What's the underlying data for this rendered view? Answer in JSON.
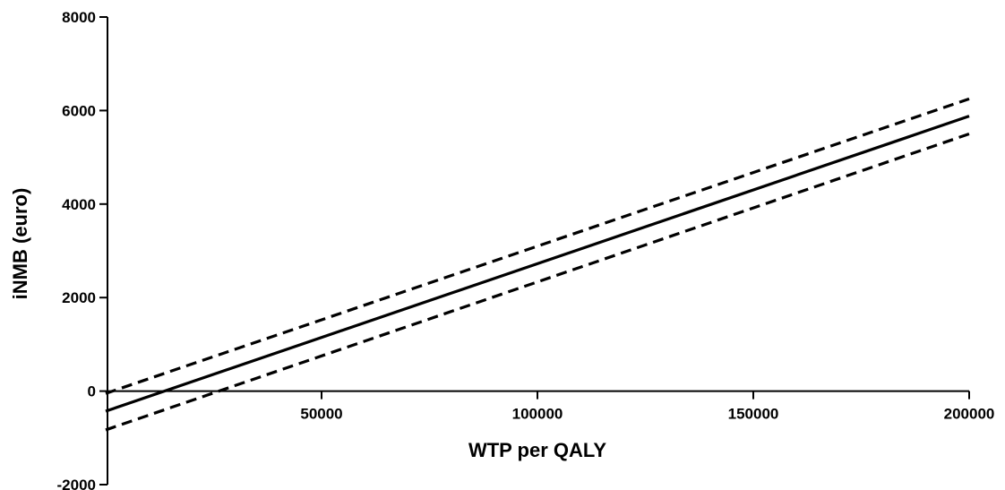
{
  "chart_data": {
    "type": "line",
    "title": "",
    "xlabel": "WTP per QALY",
    "ylabel": "iNMB  (euro)",
    "xlim": [
      0,
      200000
    ],
    "ylim": [
      -2000,
      8000
    ],
    "x_ticks": [
      50000,
      100000,
      150000,
      200000
    ],
    "y_ticks": [
      -2000,
      0,
      2000,
      4000,
      6000,
      8000
    ],
    "grid": false,
    "legend": "none",
    "series": [
      {
        "style": "solid",
        "color": "#000000",
        "x": [
          0,
          200000
        ],
        "y": [
          -430,
          5880
        ]
      },
      {
        "style": "dashed",
        "color": "#000000",
        "x": [
          0,
          200000
        ],
        "y": [
          -50,
          6250
        ]
      },
      {
        "style": "dashed",
        "color": "#000000",
        "x": [
          0,
          200000
        ],
        "y": [
          -830,
          5500
        ]
      }
    ]
  }
}
